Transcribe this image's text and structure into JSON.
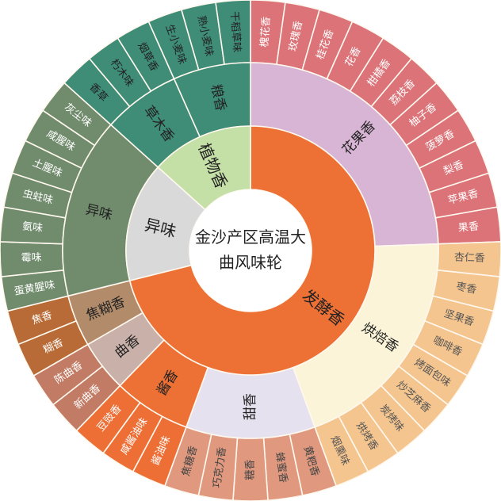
{
  "title": {
    "line1": "金沙产区高温大",
    "line2": "曲风味轮"
  },
  "wheel": [
    {
      "label": "发酵香",
      "color": "#ED7035",
      "text_color": "#222222",
      "children": [
        {
          "label": "花果香",
          "color": "#D9B5D5",
          "text_color": "#222222",
          "leaf_color": "#DC7378",
          "leaf_text_color": "#FFFFFF",
          "leaves": [
            "槐花香",
            "玫瑰香",
            "桂花香",
            "花香",
            "柑橘香",
            "荔枝香",
            "柚子香",
            "菠萝香",
            "梨香",
            "苹果香",
            "果香"
          ]
        },
        {
          "label": "烘焙香",
          "color": "#FBF4D8",
          "text_color": "#222222",
          "leaf_color": "#F5C58F",
          "leaf_text_color": "#555555",
          "leaves": [
            "杏仁香",
            "枣香",
            "坚果香",
            "咖啡香",
            "烤面包味",
            "炒芝麻香",
            "炭烤味",
            "烘烤香",
            "烟熏味"
          ]
        },
        {
          "label": "甜香",
          "color": "#E6E1EF",
          "text_color": "#222222",
          "leaf_color": "#E0997F",
          "leaf_text_color": "#444444",
          "leaves": [
            "黄粑香",
            "蜂蜜香",
            "糖香",
            "巧克力香",
            "焦糖香"
          ]
        },
        {
          "label": "酱香",
          "color": "#ED7035",
          "text_color": "#222222",
          "leaf_color": "#EE6F35",
          "leaf_text_color": "#FFFFFF",
          "leaves": [
            "酱油味",
            "咸酱油味",
            "豆豉香"
          ]
        },
        {
          "label": "曲香",
          "color": "#C9B1A9",
          "text_color": "#222222",
          "leaf_color": "#C27B64",
          "leaf_text_color": "#FFFFFF",
          "leaves": [
            "新曲香",
            "陈曲香"
          ]
        },
        {
          "label": "焦糊香",
          "color": "#B28B6A",
          "text_color": "#222222",
          "leaf_color": "#B86B36",
          "leaf_text_color": "#FFFFFF",
          "leaves": [
            "糊香",
            "焦香"
          ]
        }
      ]
    },
    {
      "label": "异味",
      "color": "#D9D9DA",
      "text_color": "#222222",
      "children": [
        {
          "label": "异味",
          "color": "#718C6D",
          "text_color": "#222222",
          "leaf_color": "#718C6D",
          "leaf_text_color": "#FFFFFF",
          "leaves": [
            "蛋黄腥味",
            "霉味",
            "氨味",
            "虫蛀味",
            "土腥味",
            "咸腥味",
            "灰尘味"
          ]
        }
      ]
    },
    {
      "label": "植物香",
      "color": "#C4E0A7",
      "text_color": "#222222",
      "children": [
        {
          "label": "草木香",
          "color": "#3F8C77",
          "text_color": "#222222",
          "leaf_color": "#3F8C77",
          "leaf_text_color": "#222222",
          "leaves": [
            "香草",
            "朽木味",
            "烟草香"
          ]
        },
        {
          "label": "粮香",
          "color": "#3F8C77",
          "text_color": "#222222",
          "leaf_color": "#3F8C77",
          "leaf_text_color": "#222222",
          "leaves": [
            "生小麦味",
            "熟小麦味",
            "干稻草味"
          ]
        }
      ]
    }
  ]
}
